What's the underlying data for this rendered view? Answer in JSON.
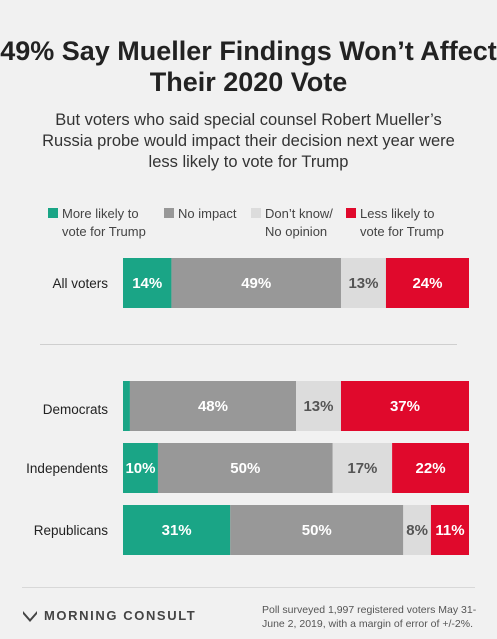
{
  "chart_data": {
    "type": "bar",
    "orientation": "horizontal-stacked-100",
    "title": "49% Say Mueller Findings Won’t Affect Their 2020 Vote",
    "subtitle": "But voters who said special counsel Robert Mueller’s Russia probe would impact their decision next year were less likely to vote for Trump",
    "legend_position": "top",
    "categories": [
      "All voters",
      "Democrats",
      "Independents",
      "Republicans"
    ],
    "series": [
      {
        "name": "More likely to vote for Trump",
        "color": "#1aa586",
        "values": [
          14,
          2,
          10,
          31
        ],
        "labels": [
          "14%",
          "",
          "10%",
          "31%"
        ]
      },
      {
        "name": "No impact",
        "color": "#989898",
        "values": [
          49,
          48,
          50,
          50
        ],
        "labels": [
          "49%",
          "48%",
          "50%",
          "50%"
        ]
      },
      {
        "name": "Don’t know/ No opinion",
        "color": "#dcdcdc",
        "values": [
          13,
          13,
          17,
          8
        ],
        "labels": [
          "13%",
          "13%",
          "17%",
          "8%"
        ]
      },
      {
        "name": "Less likely to vote for Trump",
        "color": "#e0092c",
        "values": [
          24,
          37,
          22,
          11
        ],
        "labels": [
          "24%",
          "37%",
          "22%",
          "11%"
        ]
      }
    ]
  },
  "legend": {
    "items": [
      {
        "label": "More likely to\nvote for Trump",
        "color": "#1aa586"
      },
      {
        "label": "No impact",
        "color": "#989898"
      },
      {
        "label": "Don’t know/\nNo opinion",
        "color": "#dcdcdc"
      },
      {
        "label": "Less likely to\nvote for Trump",
        "color": "#e0092c"
      }
    ]
  },
  "footer": {
    "brand": "MORNING CONSULT",
    "note": "Poll surveyed 1,997 registered voters May 31-June 2, 2019, with a margin of error of +/-2%."
  }
}
